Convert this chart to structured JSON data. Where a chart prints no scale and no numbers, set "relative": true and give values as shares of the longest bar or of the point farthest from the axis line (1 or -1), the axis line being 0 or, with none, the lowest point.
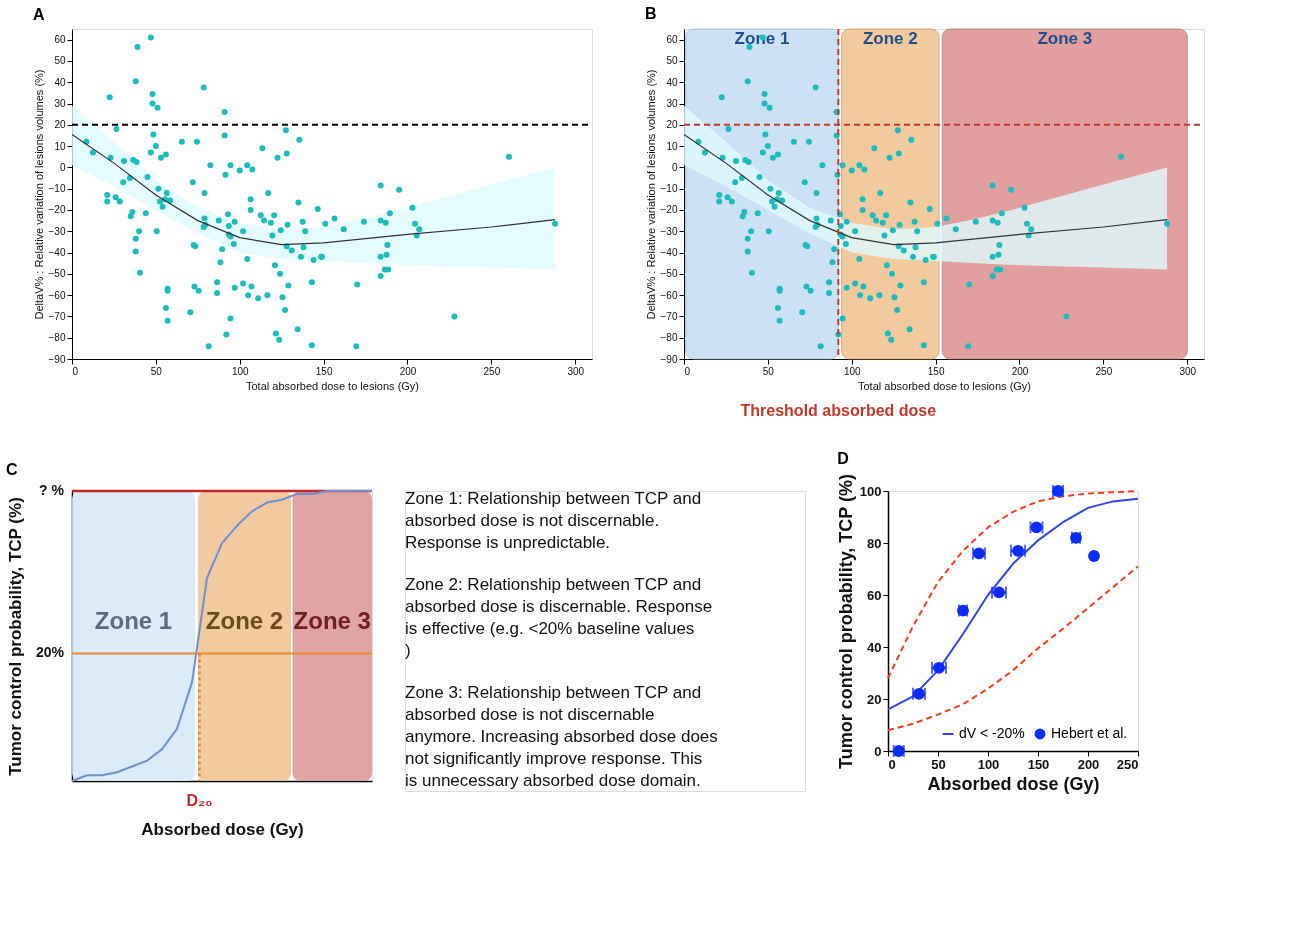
{
  "chart_data": [
    {
      "type": "scatter",
      "title": "A",
      "xlabel": "Total absorbed dose to lesions (Gy)",
      "ylabel": "DeltaV% : Relative variation of lesions volumes (%)",
      "xlim": [
        0,
        310
      ],
      "xticks": [
        0,
        50,
        100,
        150,
        200,
        250,
        300
      ],
      "ylim": [
        -90,
        65
      ],
      "yticks": [
        -90,
        -80,
        -70,
        -60,
        -50,
        -40,
        -30,
        -20,
        -10,
        0,
        10,
        20,
        30,
        40,
        50,
        60
      ],
      "series": [
        {
          "type": "scatter",
          "marker": "circle",
          "color": "#1bbcbc",
          "x": [
            8.6,
            12.5,
            22.5,
            23,
            21,
            21,
            26,
            26.5,
            28.5,
            30.5,
            31,
            34.5,
            35,
            36,
            36.5,
            38,
            38.5,
            38,
            38,
            39,
            40,
            40.5,
            44,
            45,
            47,
            47,
            48,
            48,
            48.5,
            50,
            51,
            50.5,
            51.5,
            52.5,
            53,
            54,
            56,
            55.5,
            56.5,
            58.5,
            56,
            57,
            57,
            57,
            65.5,
            70.5,
            72,
            72.5,
            73.5,
            73,
            74.5,
            75.5,
            78.5,
            79,
            78.5,
            79.5,
            79,
            81.5,
            82.5,
            86.5,
            86.5,
            87.5,
            88.5,
            89.5,
            91,
            91,
            91.5,
            92,
            93,
            93.5,
            93.5,
            94.5,
            94.5,
            94.5,
            96.5,
            97,
            97,
            100,
            102,
            102,
            104.5,
            104.5,
            105,
            106.5,
            106.5,
            107,
            107.5,
            111,
            113.5,
            112.5,
            114.5,
            116.5,
            117,
            118.5,
            119.5,
            120.5,
            121,
            121.5,
            122.5,
            123.5,
            124,
            124.5,
            125.5,
            127,
            127.5,
            128,
            128.5,
            128,
            129,
            131,
            134.5,
            135,
            135.5,
            136.5,
            137.5,
            138,
            139,
            143,
            143,
            144,
            146.5,
            148.5,
            151,
            149,
            156.5,
            162,
            170,
            169.5,
            174,
            184,
            184,
            184,
            184,
            187,
            186.5,
            187.5,
            188,
            188.5,
            189.5,
            195,
            203,
            204.5,
            205.5,
            207,
            228,
            260.5,
            288
          ],
          "values": [
            12,
            7,
            33,
            4.5,
            -13,
            -16,
            -14,
            18,
            -16,
            -7,
            3,
            -5,
            -23,
            -21,
            3.5,
            40.5,
            2.5,
            -33.5,
            -39.5,
            56.5,
            -30,
            -49.5,
            -21.5,
            -4.5,
            61,
            7,
            34.5,
            30,
            15.5,
            10,
            28,
            -30,
            -10,
            -16,
            4.5,
            -18.5,
            6,
            -15,
            -12,
            -15.5,
            -66,
            -57,
            -58,
            -72,
            12,
            -68,
            -7,
            -36.5,
            -37,
            -56,
            12,
            -58,
            37.5,
            -12,
            -28,
            -27,
            -24,
            -84,
            1,
            -54,
            -59,
            -25,
            -44.5,
            -38.5,
            26,
            15,
            -3.5,
            -78.5,
            -22,
            -27.5,
            -31.5,
            -32.5,
            1,
            -71,
            -36,
            -25.5,
            -56.5,
            -1.5,
            -30,
            -54.5,
            1,
            -43,
            -60,
            -15,
            -20,
            -56,
            -1,
            -61.5,
            9,
            -22.5,
            -25,
            -60,
            -12,
            -26,
            -32,
            -22.5,
            -46,
            -78,
            4.5,
            -81,
            -50,
            -29.5,
            -61,
            -67,
            17.5,
            6.5,
            -27,
            -37,
            -55.5,
            -39,
            -76,
            -16.5,
            13,
            -42,
            -25.5,
            -37.5,
            -30,
            -83.5,
            -54,
            -43.5,
            -19.5,
            -42,
            -26.5,
            -42,
            -24,
            -29,
            -55,
            -84,
            -25.5,
            -8.5,
            -25,
            -42,
            -51,
            -26,
            -48,
            -41,
            -36.5,
            -48,
            -21.5,
            -10.5,
            -19,
            -26.5,
            -32,
            -29,
            -70,
            5,
            -26.5
          ]
        },
        {
          "type": "line",
          "color": "#333333",
          "x": [
            0,
            25,
            50,
            75,
            100,
            125,
            150,
            175,
            200,
            250,
            288
          ],
          "values": [
            15.5,
            2,
            -13,
            -25,
            -33,
            -36.3,
            -35.5,
            -33.5,
            -31.5,
            -28,
            -24.5
          ],
          "lower": [
            1,
            -9,
            -20,
            -31,
            -40,
            -43,
            -44,
            -45,
            -46,
            -47,
            -48
          ],
          "upper": [
            29,
            12,
            -6,
            -19,
            -26,
            -29,
            -28,
            -24,
            -19,
            -8,
            0
          ]
        }
      ],
      "ref_lines": [
        {
          "axis": "y",
          "value": 20,
          "color": "#000000",
          "line_style": "dashed"
        }
      ]
    },
    {
      "type": "scatter",
      "title": "B",
      "xlabel": "Total absorbed dose to lesions (Gy)",
      "ylabel": "DeltaV% : Relative variation of lesions volumes (%)",
      "xlim": [
        0,
        310
      ],
      "xticks": [
        0,
        50,
        100,
        150,
        200,
        250,
        300
      ],
      "ylim": [
        -90,
        65
      ],
      "yticks": [
        -90,
        -80,
        -70,
        -60,
        -50,
        -40,
        -30,
        -20,
        -10,
        0,
        10,
        20,
        30,
        40,
        50,
        60
      ],
      "series": [
        {
          "type": "scatter",
          "marker": "circle",
          "color": "#1bbcbc",
          "x": [
            8.6,
            12.5,
            22.5,
            23,
            21,
            21,
            26,
            26.5,
            28.5,
            30.5,
            31,
            34.5,
            35,
            36,
            36.5,
            38,
            38.5,
            38,
            38,
            39,
            40,
            40.5,
            44,
            45,
            47,
            47,
            48,
            48,
            48.5,
            50,
            51,
            50.5,
            51.5,
            52.5,
            53,
            54,
            56,
            55.5,
            56.5,
            58.5,
            56,
            57,
            57,
            57,
            65.5,
            70.5,
            72,
            72.5,
            73.5,
            73,
            74.5,
            75.5,
            78.5,
            79,
            78.5,
            79.5,
            79,
            81.5,
            82.5,
            86.5,
            86.5,
            87.5,
            88.5,
            89.5,
            91,
            91,
            91.5,
            92,
            93,
            93.5,
            93.5,
            94.5,
            94.5,
            94.5,
            96.5,
            97,
            97,
            100,
            102,
            102,
            104.5,
            104.5,
            105,
            106.5,
            106.5,
            107,
            107.5,
            111,
            113.5,
            112.5,
            114.5,
            116.5,
            117,
            118.5,
            119.5,
            120.5,
            121,
            121.5,
            122.5,
            123.5,
            124,
            124.5,
            125.5,
            127,
            127.5,
            128,
            128.5,
            128,
            129,
            131,
            134.5,
            135,
            135.5,
            136.5,
            137.5,
            138,
            139,
            143,
            143,
            144,
            146.5,
            148.5,
            151,
            149,
            156.5,
            162,
            170,
            169.5,
            174,
            184,
            184,
            184,
            184,
            187,
            186.5,
            187.5,
            188,
            188.5,
            189.5,
            195,
            203,
            204.5,
            205.5,
            207,
            228,
            260.5,
            288
          ],
          "values": [
            12,
            7,
            33,
            4.5,
            -13,
            -16,
            -14,
            18,
            -16,
            -7,
            3,
            -5,
            -23,
            -21,
            3.5,
            40.5,
            2.5,
            -33.5,
            -39.5,
            56.5,
            -30,
            -49.5,
            -21.5,
            -4.5,
            61,
            7,
            34.5,
            30,
            15.5,
            10,
            28,
            -30,
            -10,
            -16,
            4.5,
            -18.5,
            6,
            -15,
            -12,
            -15.5,
            -66,
            -57,
            -58,
            -72,
            12,
            -68,
            -7,
            -36.5,
            -37,
            -56,
            12,
            -58,
            37.5,
            -12,
            -28,
            -27,
            -24,
            -84,
            1,
            -54,
            -59,
            -25,
            -44.5,
            -38.5,
            26,
            15,
            -3.5,
            -78.5,
            -22,
            -27.5,
            -31.5,
            -32.5,
            1,
            -71,
            -36,
            -25.5,
            -56.5,
            -1.5,
            -30,
            -54.5,
            1,
            -43,
            -60,
            -15,
            -20,
            -56,
            -1,
            -61.5,
            9,
            -22.5,
            -25,
            -60,
            -12,
            -26,
            -32,
            -22.5,
            -46,
            -78,
            4.5,
            -81,
            -50,
            -29.5,
            -61,
            -67,
            17.5,
            6.5,
            -27,
            -37,
            -55.5,
            -39,
            -76,
            -16.5,
            13,
            -42,
            -25.5,
            -37.5,
            -30,
            -83.5,
            -54,
            -43.5,
            -19.5,
            -42,
            -26.5,
            -42,
            -24,
            -29,
            -55,
            -84,
            -25.5,
            -8.5,
            -25,
            -42,
            -51,
            -26,
            -48,
            -41,
            -36.5,
            -48,
            -21.5,
            -10.5,
            -19,
            -26.5,
            -32,
            -29,
            -70,
            5,
            -26.5
          ]
        },
        {
          "type": "line",
          "color": "#333333",
          "x": [
            0,
            25,
            50,
            75,
            100,
            125,
            150,
            175,
            200,
            250,
            288
          ],
          "values": [
            15.5,
            2,
            -13,
            -25,
            -33,
            -36.3,
            -35.5,
            -33.5,
            -31.5,
            -28,
            -24.5
          ],
          "lower": [
            1,
            -9,
            -20,
            -31,
            -40,
            -43,
            -44,
            -45,
            -46,
            -47,
            -48
          ],
          "upper": [
            29,
            12,
            -6,
            -19,
            -26,
            -29,
            -28,
            -24,
            -19,
            -8,
            0
          ]
        }
      ],
      "bands": [
        {
          "axis": "x",
          "from": 1,
          "to": 92,
          "label": "Zone 1",
          "color": "#bcd8f2"
        },
        {
          "axis": "x",
          "from": 94,
          "to": 152,
          "label": "Zone 2",
          "color": "#f0b77e"
        },
        {
          "axis": "x",
          "from": 154,
          "to": 300,
          "label": "Zone 3",
          "color": "#d98080"
        }
      ],
      "ref_lines": [
        {
          "axis": "x",
          "value": 92,
          "label": "Threshold absorbed dose",
          "color": "#c0392b",
          "line_style": "dashed"
        },
        {
          "axis": "y",
          "value": 20,
          "color": "#c0392b",
          "line_style": "dashed"
        }
      ]
    },
    {
      "type": "line",
      "title": "C",
      "xlabel": "Absorbed dose (Gy)",
      "ylabel": "Tumor control probability, TCP (%)",
      "relative": true,
      "tick_labels": false,
      "categories": [
        null,
        null,
        null,
        null,
        null,
        null,
        null,
        null,
        null,
        null,
        null,
        null,
        null,
        null,
        null,
        null,
        null,
        null,
        null,
        null,
        null
      ],
      "series": [
        {
          "color": "#6f8fd0",
          "line_style": "solid",
          "values": [
            0,
            0.02,
            0.02,
            0.03,
            0.05,
            0.07,
            0.11,
            0.18,
            0.34,
            0.7,
            0.82,
            0.88,
            0.93,
            0.96,
            0.97,
            0.99,
            0.99,
            1,
            1,
            1,
            1
          ]
        }
      ],
      "ref_lines": [
        {
          "axis": "y",
          "value": 0.44,
          "color": "#e8892b"
        }
      ],
      "annotations": [
        "Zone 1",
        "Zone 2",
        "Zone 3",
        "? %",
        "20%",
        "D₂₀"
      ]
    },
    {
      "type": "other",
      "annotations": [
        "Zone 1: Relationship between TCP and absorbed dose is not discernable. Response is unpredictable.",
        "Zone 2: Relationship between TCP and absorbed dose is discernable.  Response is effective (e.g. <20% baseline values )",
        "Zone 3: Relationship  between  TCP and absorbed dose is not discernable anymore. Increasing absorbed dose does not significantly improve response. This is unnecessary absorbed dose domain."
      ]
    },
    {
      "type": "scatter",
      "title": "D",
      "xlabel": "Absorbed dose (Gy)",
      "ylabel": "Tumor control probability, TCP (%)",
      "xlim": [
        0,
        250
      ],
      "xticks": [
        0,
        50,
        100,
        150,
        200,
        250
      ],
      "ylim": [
        0,
        100
      ],
      "yticks": [
        0,
        20,
        40,
        60,
        80,
        100
      ],
      "legend": "bottom right",
      "series": [
        {
          "type": "line",
          "color": "#ff3b1f",
          "line_style": "dashed",
          "x": [
            0,
            25,
            50,
            75,
            100,
            125,
            150,
            175,
            200,
            225,
            250
          ],
          "values": [
            28,
            48,
            65,
            77,
            86,
            92,
            96,
            98,
            99,
            99.5,
            100
          ]
        },
        {
          "type": "line",
          "color": "#ff3b1f",
          "line_style": "dashed",
          "x": [
            0,
            25,
            50,
            75,
            100,
            125,
            150,
            175,
            200,
            225,
            250
          ],
          "values": [
            8,
            10.5,
            14,
            18,
            24,
            31,
            39.5,
            47,
            55,
            63,
            71
          ]
        },
        {
          "type": "line",
          "name": "dV < -20%",
          "color": "#2f45e8",
          "line_style": "solid",
          "x": [
            0,
            25,
            50,
            75,
            100,
            125,
            150,
            175,
            200,
            225,
            250
          ],
          "values": [
            16,
            21,
            31,
            45,
            60,
            72,
            81,
            88,
            93.5,
            96,
            97
          ]
        },
        {
          "type": "scatter",
          "marker": "circle",
          "name": "Hebert et al.",
          "color": "#0b2bff",
          "x": [
            10.8,
            31,
            51,
            75,
            91,
            111,
            130,
            148.5,
            170,
            188,
            206
          ],
          "values": [
            0,
            22,
            32,
            54,
            76,
            61,
            77,
            86,
            100,
            82,
            75
          ],
          "xerrors": [
            5,
            6,
            7,
            4,
            6,
            7,
            7,
            6,
            5,
            4,
            null
          ]
        }
      ]
    }
  ]
}
